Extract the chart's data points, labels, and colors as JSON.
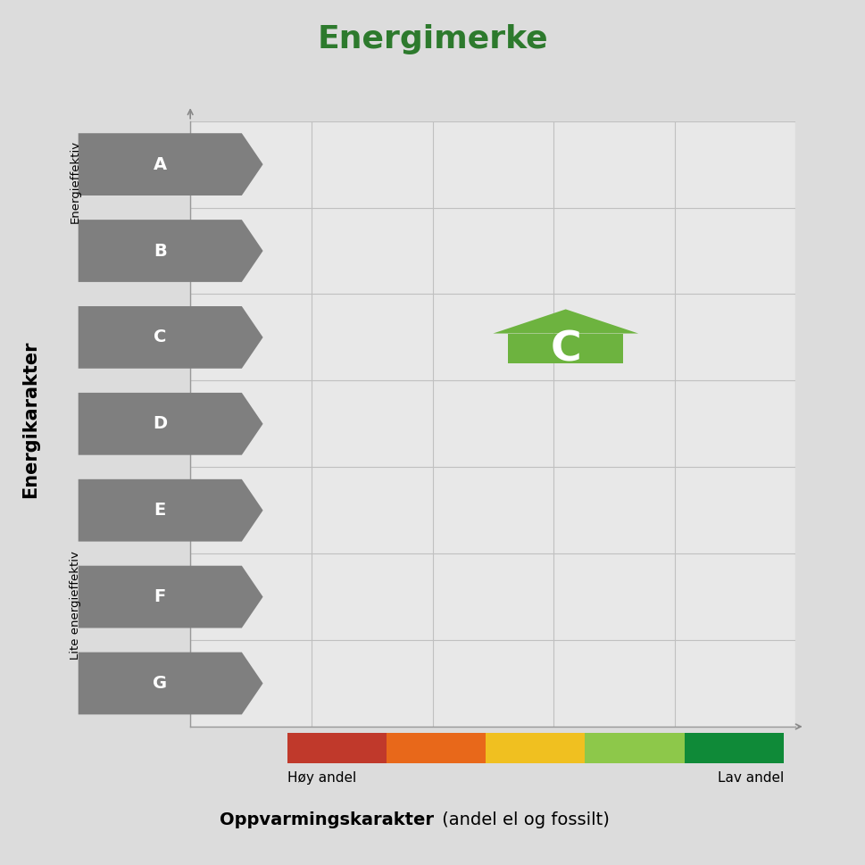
{
  "title": "Energimerke",
  "title_color": "#2d7a2d",
  "title_fontsize": 26,
  "background_color": "#dcdcdc",
  "plot_bg_color": "#e8e8e8",
  "ylabel_main": "Energikarakter",
  "ylabel_top": "Energieffektiv",
  "ylabel_bottom": "Lite energieffektiv",
  "xlabel_main": "Oppvarmingskarakter",
  "xlabel_sub": " (andel el og fossilt)",
  "xlabel_left": "Høy andel",
  "xlabel_right": "Lav andel",
  "energy_labels": [
    "A",
    "B",
    "C",
    "D",
    "E",
    "F",
    "G"
  ],
  "arrow_color": "#7f7f7f",
  "arrow_text_color": "#ffffff",
  "active_label": "C",
  "active_col": 0.62,
  "active_row": 2,
  "active_color": "#6db33f",
  "color_bar_colors": [
    "#c0392b",
    "#e8681a",
    "#f0c020",
    "#8dc84a",
    "#0f8a38"
  ],
  "grid_color": "#c0c0c0",
  "arrow_fontsize": 14,
  "house_fontsize": 34
}
